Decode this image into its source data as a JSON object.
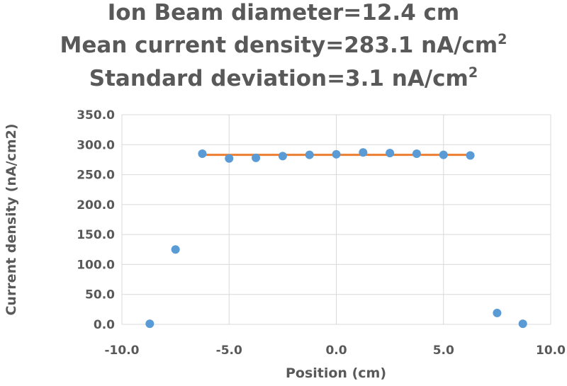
{
  "chart_data": {
    "type": "scatter",
    "title_lines": [
      {
        "text": "Ion Beam diameter=12.4 cm",
        "sup": ""
      },
      {
        "text": "Mean current density=283.1 nA/cm",
        "sup": "2"
      },
      {
        "text": "Standard deviation=3.1 nA/cm",
        "sup": "2"
      }
    ],
    "xlabel": "Position (cm)",
    "ylabel": "Current density (nA/cm2)",
    "xlim": [
      -10,
      10
    ],
    "ylim": [
      0,
      350
    ],
    "x_ticks": [
      -10,
      -5,
      0,
      5,
      10
    ],
    "x_tick_labels": [
      "-10.0",
      "-5.0",
      "0.0",
      "5.0",
      "10.0"
    ],
    "y_ticks": [
      0,
      50,
      100,
      150,
      200,
      250,
      300,
      350
    ],
    "y_tick_labels": [
      "0.0",
      "50.0",
      "100.0",
      "150.0",
      "200.0",
      "250.0",
      "300.0",
      "350.0"
    ],
    "grid": {
      "horizontal": true,
      "vertical": true
    },
    "series": [
      {
        "type": "scatter",
        "color": "#5b9bd5",
        "points": [
          {
            "x": -8.7,
            "y": 1
          },
          {
            "x": -7.5,
            "y": 125
          },
          {
            "x": -6.25,
            "y": 285
          },
          {
            "x": -5.0,
            "y": 277
          },
          {
            "x": -3.75,
            "y": 278
          },
          {
            "x": -2.5,
            "y": 281
          },
          {
            "x": -1.25,
            "y": 283
          },
          {
            "x": 0.0,
            "y": 284
          },
          {
            "x": 1.25,
            "y": 287
          },
          {
            "x": 2.5,
            "y": 286
          },
          {
            "x": 3.75,
            "y": 285
          },
          {
            "x": 5.0,
            "y": 283
          },
          {
            "x": 6.25,
            "y": 282
          },
          {
            "x": 7.5,
            "y": 19
          },
          {
            "x": 8.7,
            "y": 1
          }
        ]
      },
      {
        "type": "line",
        "color": "#ed7d31",
        "points": [
          {
            "x": -6.25,
            "y": 283.1
          },
          {
            "x": 6.25,
            "y": 283.1
          }
        ]
      }
    ]
  }
}
